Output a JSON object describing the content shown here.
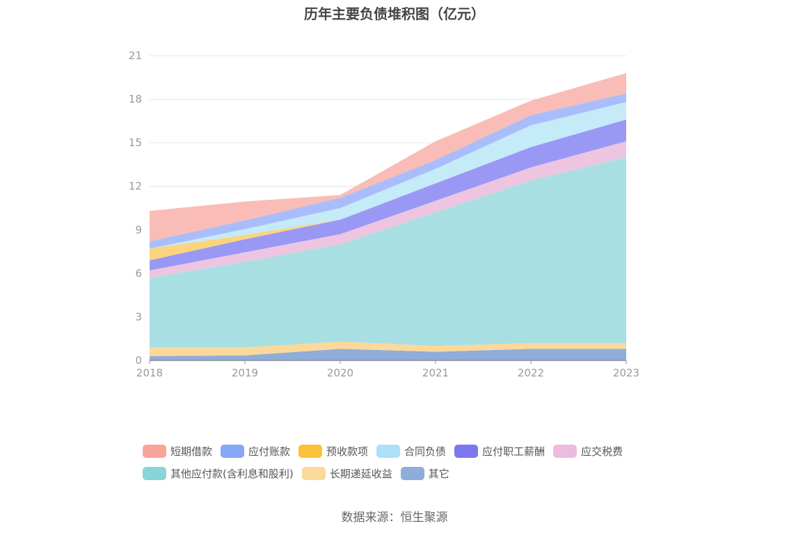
{
  "source_note": "数据来源：恒生聚源",
  "chart_data": {
    "type": "area",
    "stacked": true,
    "title": "历年主要负债堆积图（亿元）",
    "x": [
      "2018",
      "2019",
      "2020",
      "2021",
      "2022",
      "2023"
    ],
    "ylim": [
      0,
      21
    ],
    "yticks": [
      "0",
      "3",
      "6",
      "9",
      "12",
      "15",
      "18",
      "21"
    ],
    "grid": true,
    "legend_position": "bottom",
    "series": [
      {
        "name": "其它",
        "color": "#8fadd9",
        "values": [
          0.3,
          0.35,
          0.8,
          0.6,
          0.8,
          0.8
        ]
      },
      {
        "name": "长期递延收益",
        "color": "#fcd89b",
        "values": [
          0.6,
          0.55,
          0.5,
          0.4,
          0.4,
          0.4
        ]
      },
      {
        "name": "其他应付款(含利息和股利)",
        "color": "#a8dfe2",
        "values": [
          4.8,
          5.9,
          6.7,
          9.2,
          11.2,
          12.8
        ]
      },
      {
        "name": "应交税费",
        "color": "#edc5e1",
        "values": [
          0.5,
          0.65,
          0.7,
          0.8,
          0.9,
          1.1
        ]
      },
      {
        "name": "应付职工薪酬",
        "color": "#9a98f5",
        "values": [
          0.7,
          0.9,
          1.0,
          1.2,
          1.4,
          1.5
        ]
      },
      {
        "name": "预收款项",
        "color": "#fcd47e",
        "values": [
          0.8,
          0.3,
          0.0,
          0.0,
          0.0,
          0.0
        ]
      },
      {
        "name": "合同负债",
        "color": "#c5eaf8",
        "values": [
          0.0,
          0.4,
          0.8,
          1.0,
          1.5,
          1.2
        ]
      },
      {
        "name": "应付账款",
        "color": "#a9bdfb",
        "values": [
          0.5,
          0.6,
          0.7,
          0.6,
          0.7,
          0.6
        ]
      },
      {
        "name": "短期借款",
        "color": "#f9bcb6",
        "values": [
          2.1,
          1.3,
          0.2,
          1.3,
          1.0,
          1.4
        ]
      }
    ],
    "legend": [
      {
        "name": "短期借款",
        "color": "#f9a49b"
      },
      {
        "name": "应付账款",
        "color": "#86a6f7"
      },
      {
        "name": "预收款项",
        "color": "#fcc23c"
      },
      {
        "name": "合同负债",
        "color": "#aee0f7"
      },
      {
        "name": "应付职工薪酬",
        "color": "#7b78f0"
      },
      {
        "name": "应交税费",
        "color": "#ebbcdc"
      },
      {
        "name": "其他应付款(含利息和股利)",
        "color": "#86d5d9"
      },
      {
        "name": "长期递延收益",
        "color": "#fcd89b"
      },
      {
        "name": "其它",
        "color": "#8fadd9"
      }
    ]
  }
}
